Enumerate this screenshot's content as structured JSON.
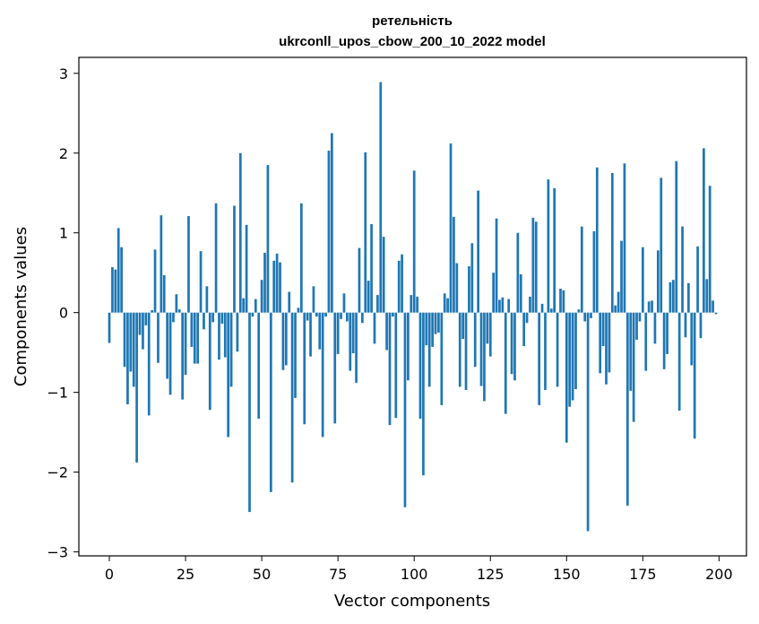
{
  "chart_data": {
    "type": "bar",
    "title_lines": [
      "ретельність",
      "ukrconll_upos_cbow_200_10_2022 model"
    ],
    "xlabel": "Vector components",
    "ylabel": "Components values",
    "xlim": [
      -10,
      209
    ],
    "ylim": [
      -3.05,
      3.2
    ],
    "xticks": [
      0,
      25,
      50,
      75,
      100,
      125,
      150,
      175,
      200
    ],
    "yticks": [
      -3,
      -2,
      -1,
      0,
      1,
      2,
      3
    ],
    "ytick_labels": [
      "−3",
      "−2",
      "−1",
      "0",
      "1",
      "2",
      "3"
    ],
    "bar_color": "#1f77b4",
    "grid": false,
    "values": [
      -0.38,
      0.57,
      0.54,
      1.06,
      0.82,
      -0.68,
      -1.15,
      -0.74,
      -0.93,
      -1.88,
      -0.28,
      -0.46,
      -0.16,
      -1.29,
      0.03,
      0.79,
      -0.63,
      1.22,
      0.47,
      -0.83,
      -1.03,
      -0.12,
      0.23,
      0.04,
      -1.09,
      -0.78,
      1.21,
      -0.43,
      -0.64,
      -0.64,
      0.77,
      -0.21,
      0.33,
      -1.22,
      -0.12,
      1.37,
      -0.59,
      -0.14,
      -0.56,
      -1.56,
      -0.93,
      1.34,
      -0.49,
      2.0,
      0.18,
      1.1,
      -2.5,
      -0.05,
      0.17,
      -1.33,
      0.41,
      0.75,
      1.85,
      -2.25,
      0.65,
      0.74,
      0.63,
      -0.72,
      -0.66,
      0.26,
      -2.13,
      -1.07,
      0.06,
      1.37,
      -1.4,
      -0.1,
      -0.55,
      0.33,
      -0.05,
      -0.46,
      -1.56,
      -0.05,
      2.03,
      2.25,
      -1.39,
      -0.52,
      -0.08,
      0.24,
      -0.11,
      -0.73,
      -0.51,
      -0.88,
      0.81,
      -0.13,
      2.01,
      0.4,
      1.11,
      -0.39,
      0.22,
      2.89,
      0.95,
      -0.47,
      -1.41,
      -0.05,
      -1.32,
      0.65,
      0.73,
      -2.44,
      -0.85,
      0.22,
      1.78,
      0.2,
      -1.33,
      -2.04,
      -0.41,
      -0.93,
      -0.43,
      -0.27,
      -0.25,
      -1.16,
      0.24,
      0.18,
      2.12,
      1.2,
      0.62,
      -0.93,
      -0.33,
      -0.97,
      0.58,
      0.87,
      -0.68,
      1.53,
      -0.92,
      -1.11,
      -0.39,
      -0.55,
      0.5,
      1.18,
      0.16,
      0.19,
      -1.27,
      0.17,
      -0.77,
      -0.85,
      1.0,
      0.48,
      -0.42,
      -0.13,
      0.2,
      1.19,
      1.14,
      -1.16,
      0.11,
      -0.97,
      1.67,
      0.05,
      1.56,
      -0.93,
      0.3,
      0.28,
      -1.63,
      -1.18,
      -1.1,
      -0.96,
      0.04,
      1.08,
      -0.11,
      -2.74,
      -0.07,
      1.02,
      1.82,
      -0.76,
      -0.42,
      -0.9,
      -0.75,
      1.75,
      0.09,
      0.26,
      0.9,
      1.87,
      -2.42,
      -0.98,
      -1.37,
      -0.34,
      -0.11,
      0.82,
      -0.73,
      0.14,
      0.15,
      -0.39,
      0.78,
      1.69,
      -0.71,
      -0.52,
      0.38,
      0.41,
      1.9,
      -1.23,
      1.08,
      -0.31,
      0.37,
      -0.66,
      -1.58,
      0.83,
      -0.32,
      2.06,
      0.42,
      1.59,
      0.15,
      -0.02
    ]
  }
}
